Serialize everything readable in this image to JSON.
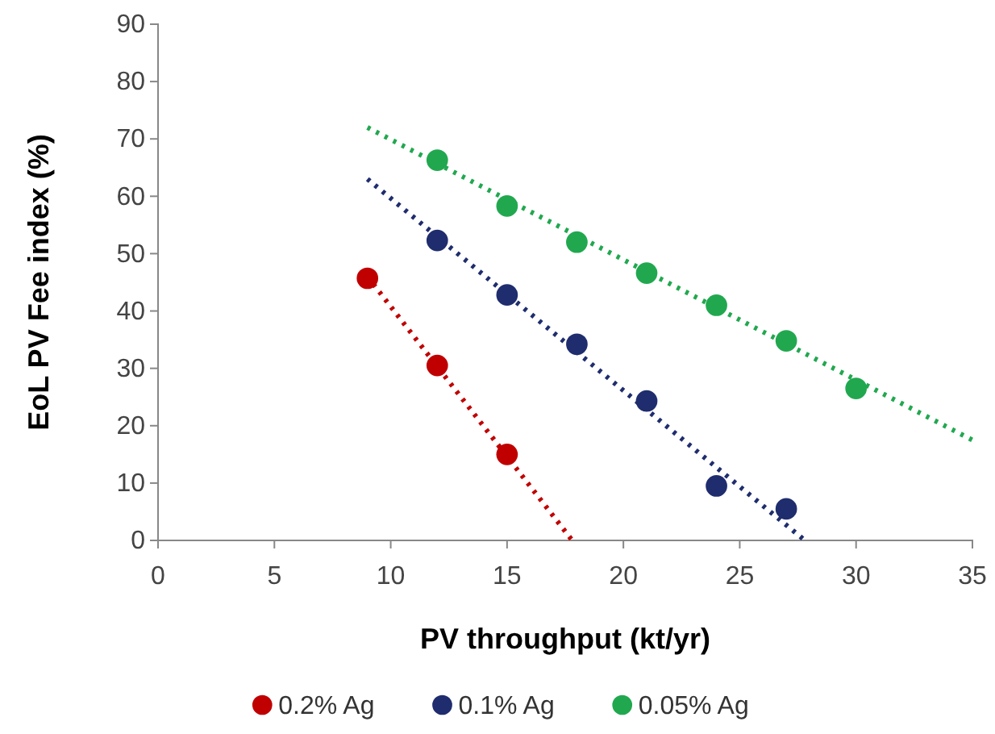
{
  "chart_data": {
    "type": "scatter",
    "xlabel": "PV throughput (kt/yr)",
    "ylabel": "EoL PV Fee index (%)",
    "xlim": [
      0,
      35
    ],
    "ylim": [
      0,
      90
    ],
    "xticks": [
      0,
      5,
      10,
      15,
      20,
      25,
      30,
      35
    ],
    "yticks": [
      0,
      10,
      20,
      30,
      40,
      50,
      60,
      70,
      80,
      90
    ],
    "grid": false,
    "legend": "bottom",
    "marker": "circle",
    "line_style": "dotted",
    "series": [
      {
        "name": "0.2% Ag",
        "color": "#c00000",
        "x": [
          9,
          12,
          15
        ],
        "values": [
          45.7,
          30.5,
          15
        ]
      },
      {
        "name": "0.1% Ag",
        "color": "#1f2d6e",
        "x": [
          12,
          15,
          18,
          21,
          24,
          27
        ],
        "values": [
          52.3,
          42.8,
          34.2,
          24.3,
          9.5,
          5.5
        ]
      },
      {
        "name": "0.05% Ag",
        "color": "#21a84f",
        "x": [
          12,
          15,
          18,
          21,
          24,
          27,
          30
        ],
        "values": [
          66.3,
          58.3,
          52,
          46.6,
          41,
          34.8,
          26.5
        ]
      },
      {
        "type": "line",
        "marker": "none",
        "color": "#c00000",
        "x": [
          9,
          17.8
        ],
        "values": [
          46,
          0
        ]
      },
      {
        "type": "line",
        "marker": "none",
        "color": "#1f2d6e",
        "x": [
          9,
          27.8
        ],
        "values": [
          63,
          0
        ]
      },
      {
        "type": "line",
        "marker": "none",
        "color": "#21a84f",
        "x": [
          9,
          35
        ],
        "values": [
          72,
          17.5
        ]
      }
    ]
  }
}
